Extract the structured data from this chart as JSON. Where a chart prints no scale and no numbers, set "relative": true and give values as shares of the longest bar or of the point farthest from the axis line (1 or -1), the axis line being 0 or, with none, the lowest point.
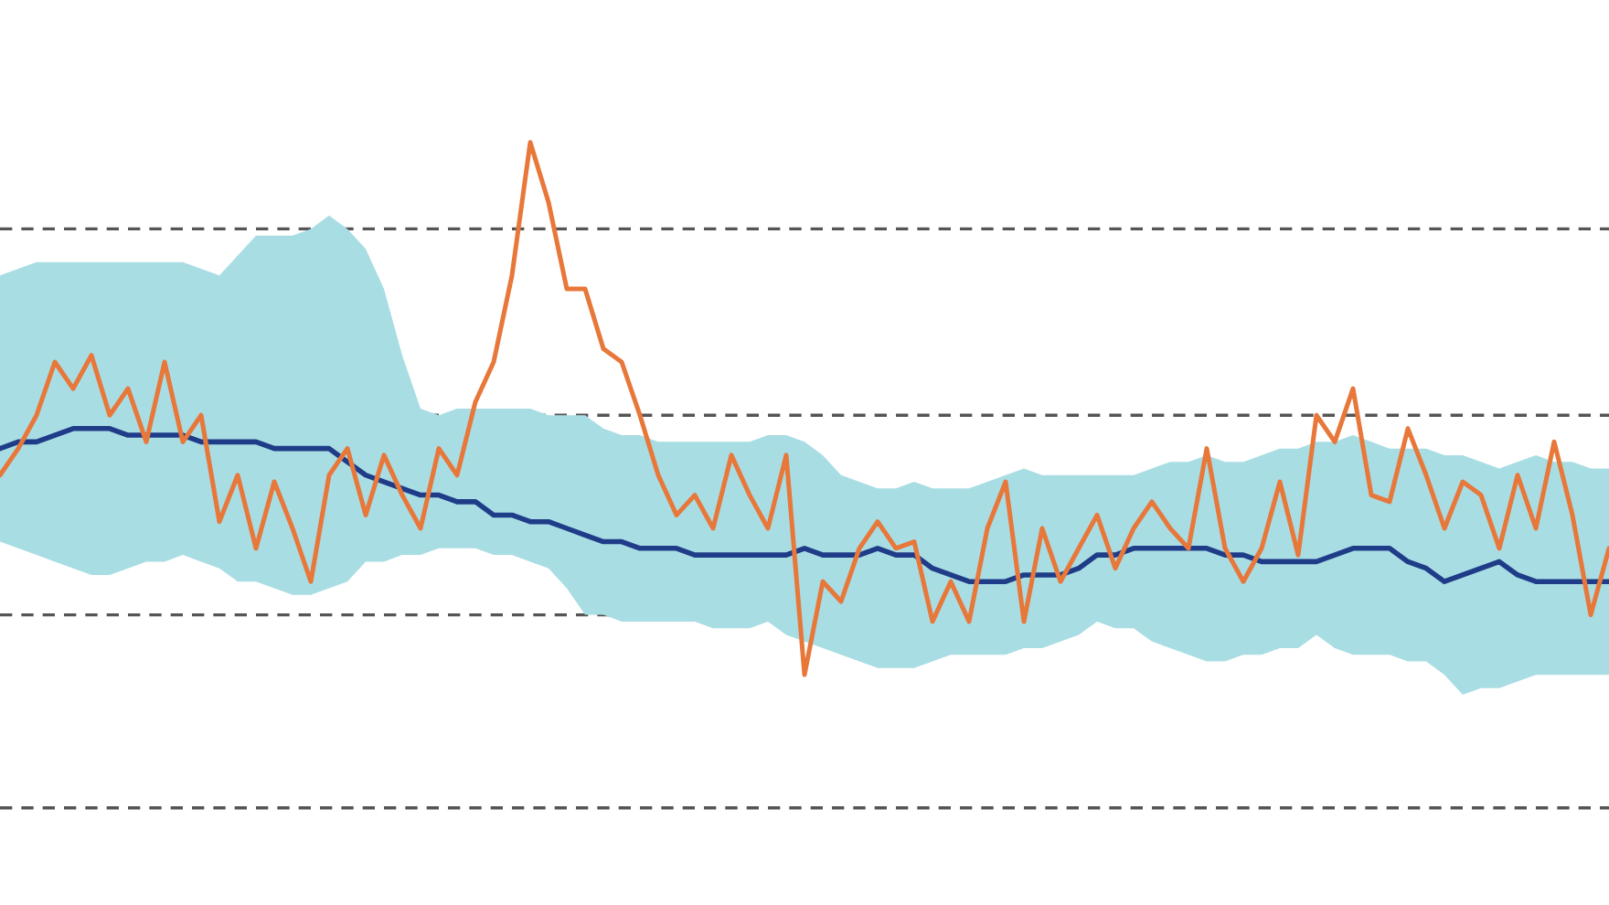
{
  "chart_data": {
    "type": "line",
    "relative": true,
    "categories": [
      null,
      null,
      null,
      null,
      null,
      null,
      null,
      null,
      null,
      null,
      null,
      null,
      null,
      null,
      null,
      null,
      null,
      null,
      null,
      null,
      null,
      null,
      null,
      null,
      null,
      null,
      null,
      null,
      null,
      null,
      null,
      null,
      null,
      null,
      null,
      null,
      null,
      null,
      null,
      null,
      null,
      null,
      null,
      null,
      null,
      null,
      null,
      null,
      null,
      null,
      null,
      null,
      null,
      null,
      null,
      null,
      null,
      null,
      null,
      null,
      null,
      null,
      null,
      null,
      null,
      null,
      null,
      null,
      null,
      null,
      null,
      null,
      null,
      null,
      null,
      null,
      null,
      null,
      null,
      null,
      null,
      null,
      null,
      null,
      null,
      null,
      null,
      null,
      null
    ],
    "series": [
      {
        "color": "#1f3c88",
        "values": [
          0.54,
          0.55,
          0.55,
          0.56,
          0.57,
          0.57,
          0.57,
          0.56,
          0.56,
          0.56,
          0.56,
          0.55,
          0.55,
          0.55,
          0.55,
          0.54,
          0.54,
          0.54,
          0.54,
          0.52,
          0.5,
          0.49,
          0.48,
          0.47,
          0.47,
          0.46,
          0.46,
          0.44,
          0.44,
          0.43,
          0.43,
          0.42,
          0.41,
          0.4,
          0.4,
          0.39,
          0.39,
          0.39,
          0.38,
          0.38,
          0.38,
          0.38,
          0.38,
          0.38,
          0.39,
          0.38,
          0.38,
          0.38,
          0.39,
          0.38,
          0.38,
          0.36,
          0.35,
          0.34,
          0.34,
          0.34,
          0.35,
          0.35,
          0.35,
          0.36,
          0.38,
          0.38,
          0.39,
          0.39,
          0.39,
          0.39,
          0.39,
          0.38,
          0.38,
          0.37,
          0.37,
          0.37,
          0.37,
          0.38,
          0.39,
          0.39,
          0.39,
          0.37,
          0.36,
          0.34,
          0.35,
          0.36,
          0.37,
          0.35,
          0.34,
          0.34,
          0.34,
          0.34,
          0.34
        ],
        "upper": [
          0.8,
          0.81,
          0.82,
          0.82,
          0.82,
          0.82,
          0.82,
          0.82,
          0.82,
          0.82,
          0.82,
          0.81,
          0.8,
          0.83,
          0.86,
          0.86,
          0.86,
          0.87,
          0.89,
          0.87,
          0.84,
          0.78,
          0.68,
          0.6,
          0.59,
          0.6,
          0.6,
          0.6,
          0.6,
          0.6,
          0.59,
          0.59,
          0.59,
          0.57,
          0.56,
          0.56,
          0.55,
          0.55,
          0.55,
          0.55,
          0.55,
          0.55,
          0.56,
          0.56,
          0.55,
          0.53,
          0.5,
          0.49,
          0.48,
          0.48,
          0.49,
          0.48,
          0.48,
          0.48,
          0.49,
          0.5,
          0.51,
          0.5,
          0.5,
          0.5,
          0.5,
          0.5,
          0.5,
          0.51,
          0.52,
          0.52,
          0.53,
          0.52,
          0.52,
          0.53,
          0.54,
          0.54,
          0.55,
          0.55,
          0.56,
          0.55,
          0.54,
          0.54,
          0.54,
          0.53,
          0.53,
          0.52,
          0.51,
          0.52,
          0.53,
          0.52,
          0.52,
          0.51,
          0.51
        ],
        "lower": [
          0.4,
          0.39,
          0.38,
          0.37,
          0.36,
          0.35,
          0.35,
          0.36,
          0.37,
          0.37,
          0.38,
          0.37,
          0.36,
          0.34,
          0.34,
          0.33,
          0.32,
          0.32,
          0.33,
          0.34,
          0.37,
          0.37,
          0.38,
          0.38,
          0.39,
          0.39,
          0.39,
          0.38,
          0.38,
          0.37,
          0.36,
          0.33,
          0.29,
          0.29,
          0.28,
          0.28,
          0.28,
          0.28,
          0.28,
          0.27,
          0.27,
          0.27,
          0.28,
          0.26,
          0.25,
          0.24,
          0.23,
          0.22,
          0.21,
          0.21,
          0.21,
          0.22,
          0.23,
          0.23,
          0.23,
          0.23,
          0.24,
          0.24,
          0.25,
          0.26,
          0.28,
          0.27,
          0.27,
          0.25,
          0.24,
          0.23,
          0.22,
          0.22,
          0.23,
          0.23,
          0.24,
          0.24,
          0.26,
          0.24,
          0.23,
          0.23,
          0.23,
          0.22,
          0.22,
          0.2,
          0.17,
          0.18,
          0.18,
          0.19,
          0.2,
          0.2,
          0.2,
          0.2,
          0.2
        ]
      },
      {
        "color": "#e8773a",
        "values": [
          0.5,
          0.54,
          0.59,
          0.67,
          0.63,
          0.68,
          0.59,
          0.63,
          0.55,
          0.67,
          0.55,
          0.59,
          0.43,
          0.5,
          0.39,
          0.49,
          0.42,
          0.34,
          0.5,
          0.54,
          0.44,
          0.53,
          0.47,
          0.42,
          0.54,
          0.5,
          0.61,
          0.67,
          0.8,
          1.0,
          0.91,
          0.78,
          0.78,
          0.69,
          0.67,
          0.59,
          0.5,
          0.44,
          0.47,
          0.42,
          0.53,
          0.47,
          0.42,
          0.53,
          0.2,
          0.34,
          0.31,
          0.39,
          0.43,
          0.39,
          0.4,
          0.28,
          0.34,
          0.28,
          0.42,
          0.49,
          0.28,
          0.42,
          0.34,
          0.39,
          0.44,
          0.36,
          0.42,
          0.46,
          0.42,
          0.39,
          0.54,
          0.39,
          0.34,
          0.39,
          0.49,
          0.38,
          0.59,
          0.55,
          0.63,
          0.47,
          0.46,
          0.57,
          0.5,
          0.42,
          0.49,
          0.47,
          0.39,
          0.5,
          0.42,
          0.55,
          0.44,
          0.29,
          0.39
        ]
      }
    ],
    "ref_lines": [
      {
        "axis": "y",
        "value": 0.87,
        "color": "#555555",
        "line_style": "dashed"
      },
      {
        "axis": "y",
        "value": 0.59,
        "color": "#555555",
        "line_style": "dashed"
      },
      {
        "axis": "y",
        "value": 0.29,
        "color": "#555555",
        "line_style": "dashed"
      },
      {
        "axis": "y",
        "value": 0,
        "color": "#555555",
        "line_style": "dashed"
      }
    ]
  }
}
